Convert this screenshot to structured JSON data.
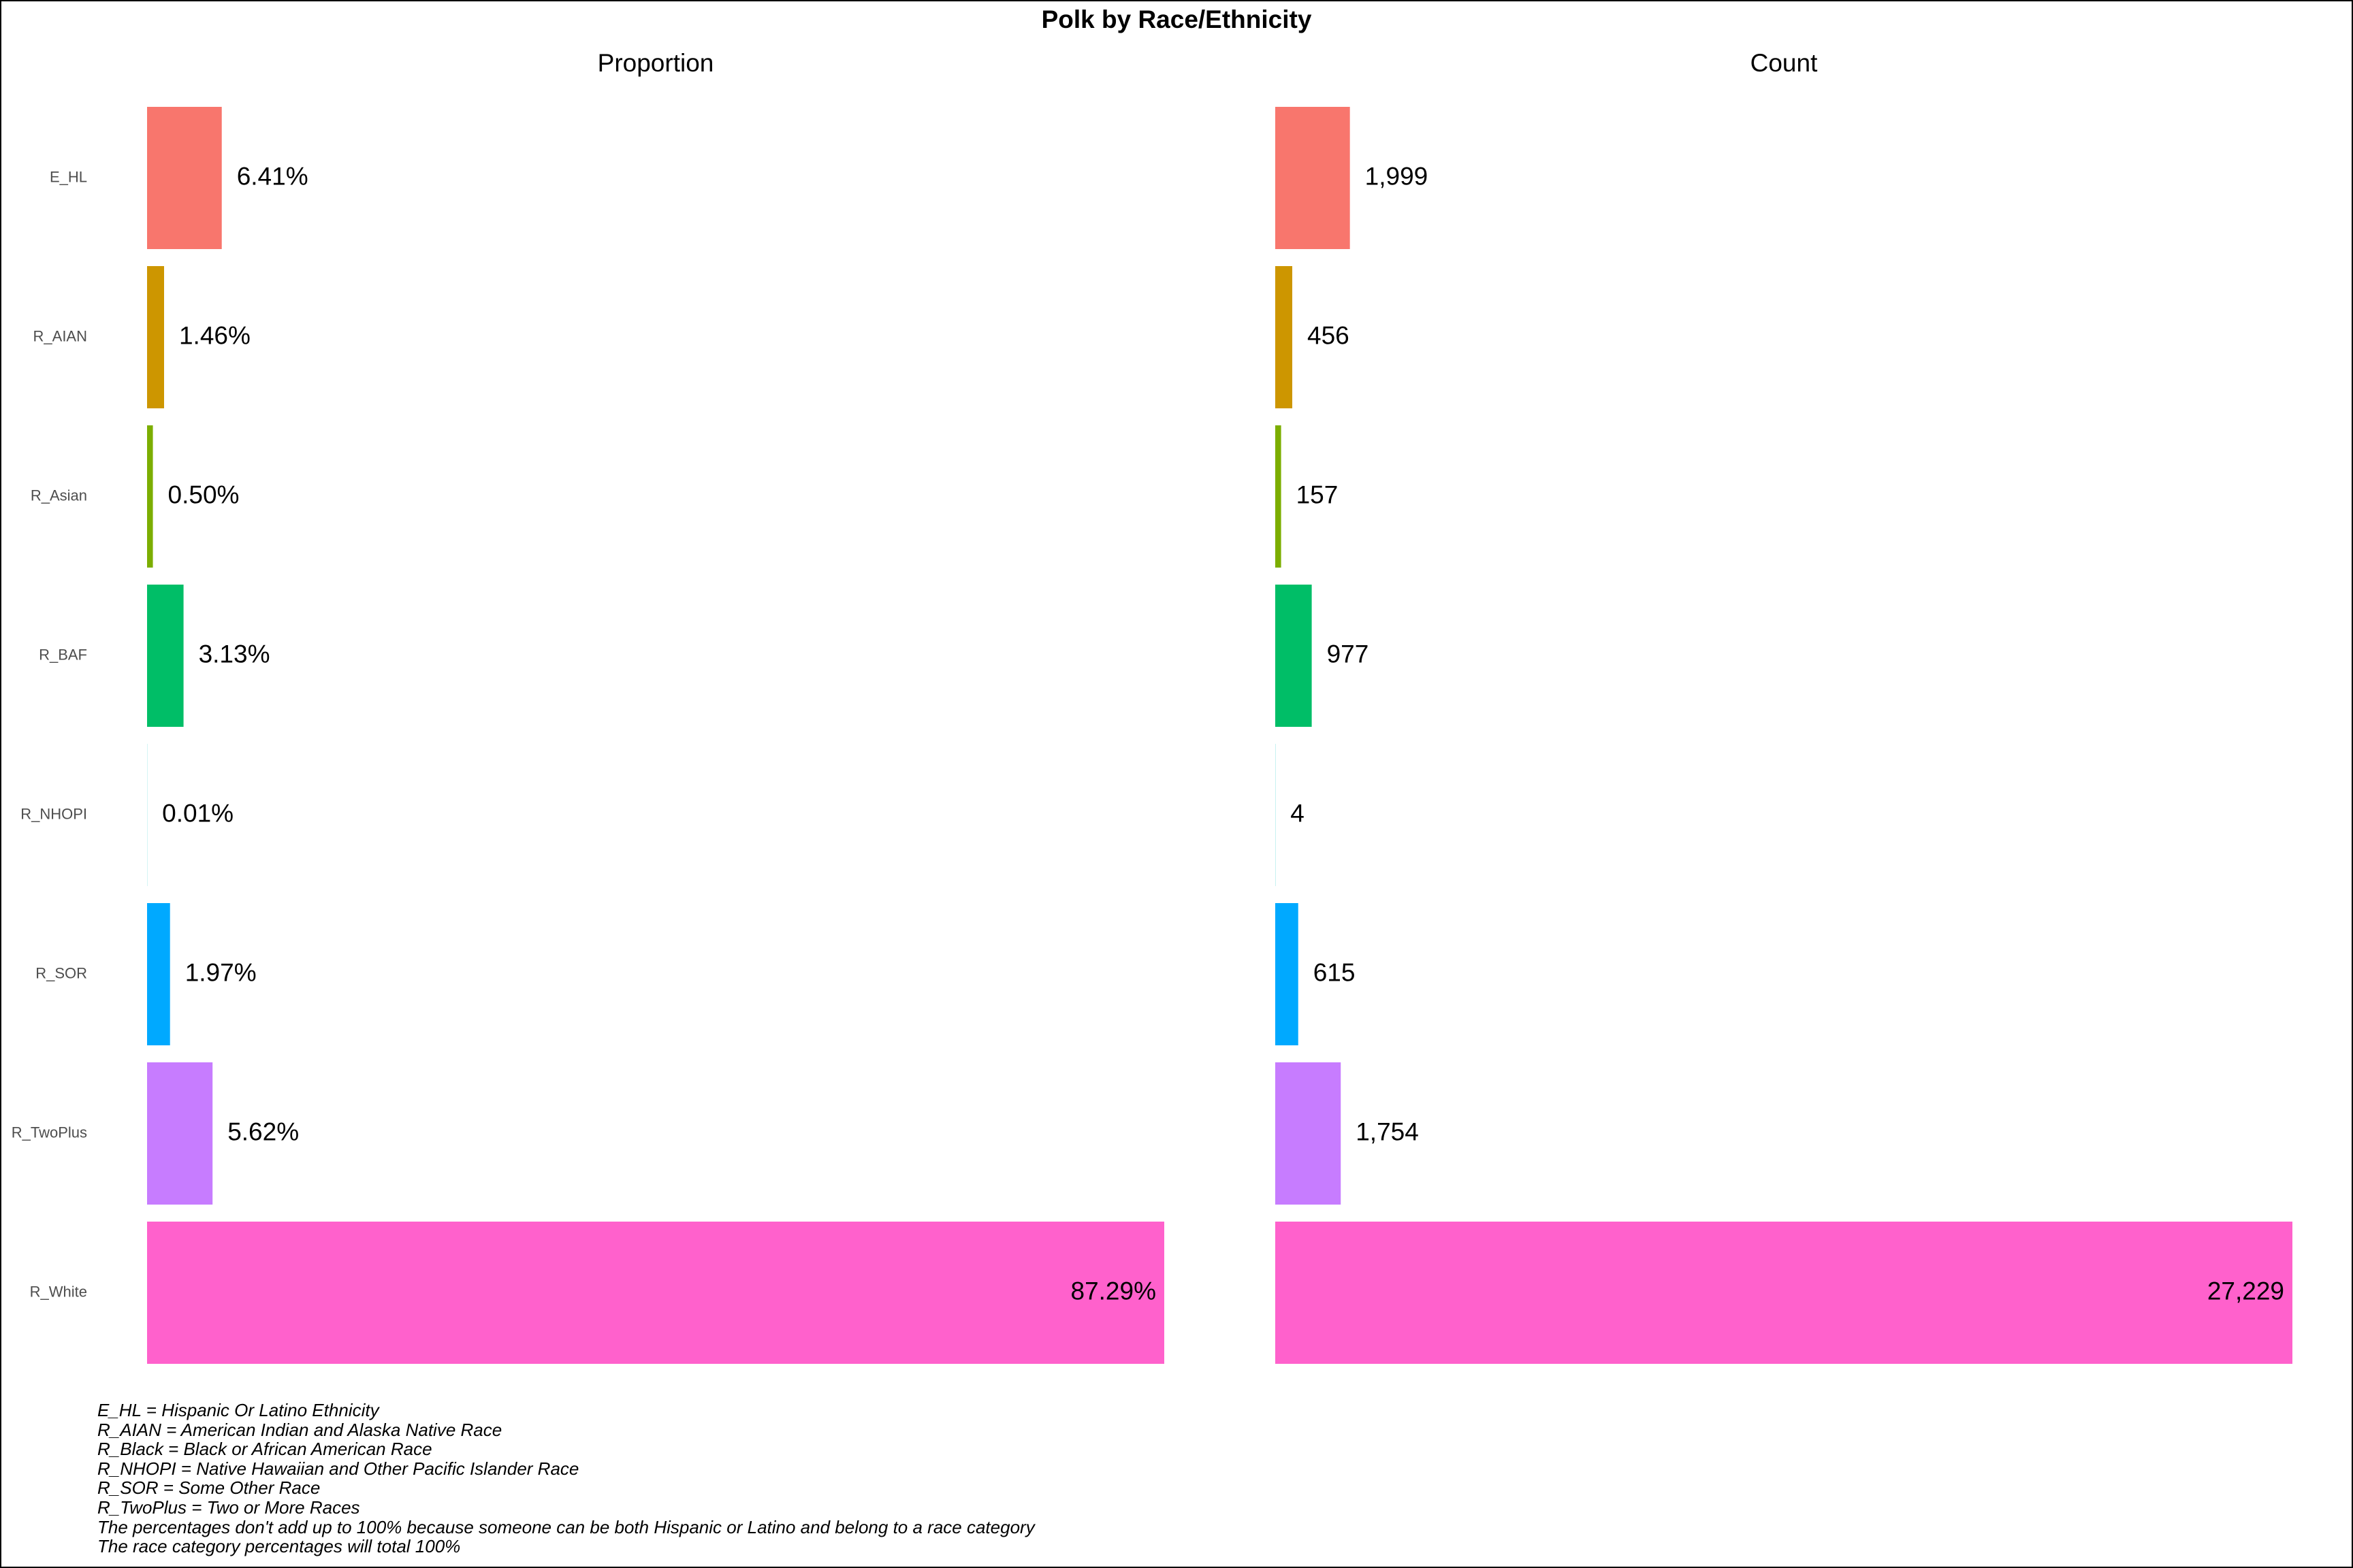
{
  "chart_data": {
    "type": "bar",
    "orientation": "horizontal",
    "title": "Polk by Race/Ethnicity",
    "categories": [
      "E_HL",
      "R_AIAN",
      "R_Asian",
      "R_BAF",
      "R_NHOPI",
      "R_SOR",
      "R_TwoPlus",
      "R_White"
    ],
    "colors": [
      "#F8766D",
      "#CD9600",
      "#7CAE00",
      "#00BE67",
      "#00BFC4",
      "#00A9FF",
      "#C77CFF",
      "#FF61CC"
    ],
    "panels": [
      {
        "title": "Proportion",
        "values": [
          6.41,
          1.46,
          0.5,
          3.13,
          0.01,
          1.97,
          5.62,
          87.29
        ],
        "labels": [
          "6.41%",
          "1.46%",
          "0.50%",
          "3.13%",
          "0.01%",
          "1.97%",
          "5.62%",
          "87.29%"
        ],
        "xlim": [
          0,
          87.29
        ]
      },
      {
        "title": "Count",
        "values": [
          1999,
          456,
          157,
          977,
          4,
          615,
          1754,
          27229
        ],
        "labels": [
          "1,999",
          "456",
          "157",
          "977",
          "4",
          "615",
          "1,754",
          "27,229"
        ],
        "xlim": [
          0,
          27229
        ]
      }
    ],
    "grid": false,
    "legend": "none"
  },
  "footnotes": [
    "E_HL = Hispanic Or Latino Ethnicity",
    "R_AIAN = American Indian and Alaska Native Race",
    "R_Black = Black or African American Race",
    "R_NHOPI = Native Hawaiian and Other Pacific Islander Race",
    "R_SOR = Some Other Race",
    "R_TwoPlus = Two or More Races",
    "The percentages don't add up to 100% because someone can be both Hispanic or Latino and belong to a race category",
    "The race category percentages will total 100%"
  ]
}
